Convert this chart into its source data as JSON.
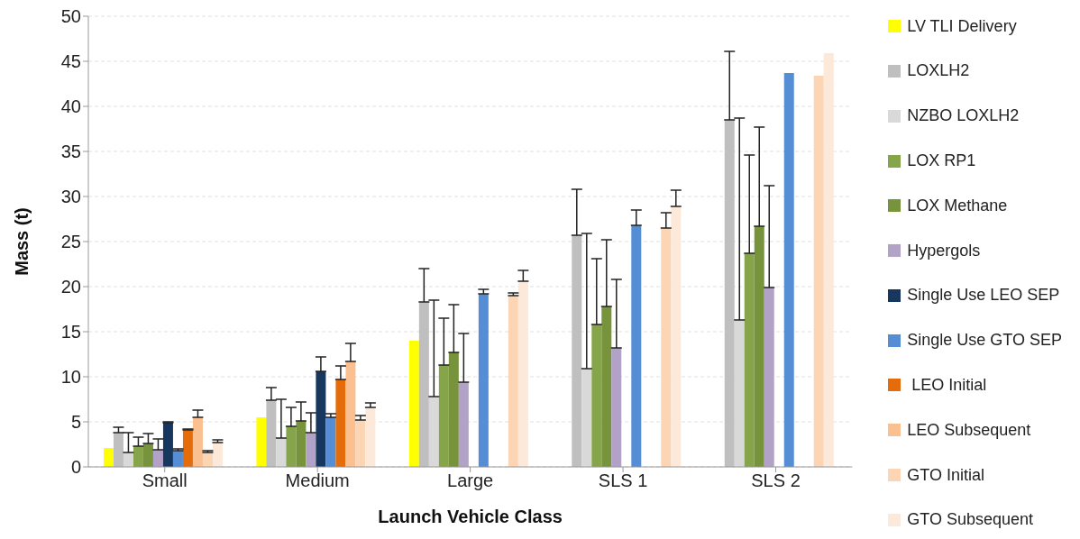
{
  "chart_data": {
    "type": "bar",
    "xlabel": "Launch Vehicle Class",
    "ylabel": "Mass (t)",
    "categories": [
      "Small",
      "Medium",
      "Large",
      "SLS 1",
      "SLS 2"
    ],
    "ylim": [
      0,
      50
    ],
    "yticks": [
      0,
      5,
      10,
      15,
      20,
      25,
      30,
      35,
      40,
      45,
      50
    ],
    "grid": "y",
    "legend": "right",
    "series": [
      {
        "name": "LV TLI Delivery",
        "color": "#ffff00",
        "values": [
          2.1,
          5.5,
          14.0,
          null,
          null
        ]
      },
      {
        "name": "LOXLH2",
        "color": "#bfbfbf",
        "values": [
          3.8,
          7.4,
          18.3,
          25.7,
          38.5
        ],
        "errors": [
          [
            3.8,
            4.4
          ],
          [
            7.4,
            8.8
          ],
          [
            18.3,
            22.0
          ],
          [
            25.7,
            30.8
          ],
          [
            38.5,
            46.1
          ]
        ]
      },
      {
        "name": "NZBO LOXLH2",
        "color": "#d9d9d9",
        "values": [
          1.6,
          3.2,
          7.8,
          10.9,
          16.3
        ],
        "errors": [
          [
            1.6,
            3.8
          ],
          [
            3.2,
            7.5
          ],
          [
            7.8,
            18.5
          ],
          [
            10.9,
            25.9
          ],
          [
            16.3,
            38.7
          ]
        ]
      },
      {
        "name": "LOX RP1",
        "color": "#86a44a",
        "values": [
          2.3,
          4.5,
          11.3,
          15.8,
          23.7
        ],
        "errors": [
          [
            2.3,
            3.3
          ],
          [
            4.5,
            6.6
          ],
          [
            11.3,
            16.5
          ],
          [
            15.8,
            23.1
          ],
          [
            23.7,
            34.6
          ]
        ]
      },
      {
        "name": "LOX Methane",
        "color": "#77933c",
        "values": [
          2.6,
          5.1,
          12.7,
          17.8,
          26.7
        ],
        "errors": [
          [
            2.6,
            3.7
          ],
          [
            5.1,
            7.2
          ],
          [
            12.7,
            18.0
          ],
          [
            17.8,
            25.2
          ],
          [
            26.7,
            37.7
          ]
        ]
      },
      {
        "name": "Hypergols",
        "color": "#b3a2c7",
        "values": [
          1.9,
          3.8,
          9.4,
          13.2,
          19.9
        ],
        "errors": [
          [
            1.9,
            3.1
          ],
          [
            3.8,
            6.0
          ],
          [
            9.4,
            14.8
          ],
          [
            13.2,
            20.8
          ],
          [
            19.9,
            31.2
          ]
        ]
      },
      {
        "name": "Single Use LEO SEP",
        "color": "#17375e",
        "values": [
          4.9,
          10.6,
          null,
          null,
          null
        ],
        "errors": [
          [
            4.9,
            5.0
          ],
          [
            10.6,
            12.2
          ],
          null,
          null,
          null
        ]
      },
      {
        "name": "Single Use GTO SEP",
        "color": "#558ed5",
        "values": [
          1.8,
          5.5,
          19.2,
          26.8,
          43.7
        ],
        "errors": [
          [
            1.8,
            2.0
          ],
          [
            5.5,
            5.9
          ],
          [
            19.2,
            19.7
          ],
          [
            26.8,
            28.5
          ],
          null
        ]
      },
      {
        "name": " LEO Initial",
        "color": "#e46c0a",
        "values": [
          4.1,
          9.7,
          null,
          null,
          null
        ],
        "errors": [
          [
            4.1,
            4.2
          ],
          [
            9.7,
            11.2
          ],
          null,
          null,
          null
        ]
      },
      {
        "name": "LEO Subsequent",
        "color": "#fac090",
        "values": [
          5.5,
          11.7,
          null,
          null,
          null
        ],
        "errors": [
          [
            5.5,
            6.3
          ],
          [
            11.7,
            13.7
          ],
          null,
          null,
          null
        ]
      },
      {
        "name": "GTO Initial",
        "color": "#fcd5b5",
        "values": [
          1.6,
          5.2,
          19.0,
          26.5,
          43.4
        ],
        "errors": [
          [
            1.6,
            1.8
          ],
          [
            5.2,
            5.7
          ],
          [
            19.0,
            19.3
          ],
          [
            26.5,
            28.2
          ],
          null
        ]
      },
      {
        "name": "GTO Subsequent",
        "color": "#fde9d9",
        "values": [
          2.7,
          6.6,
          20.6,
          28.9,
          45.9
        ],
        "errors": [
          [
            2.7,
            3.0
          ],
          [
            6.6,
            7.1
          ],
          [
            20.6,
            21.8
          ],
          [
            28.9,
            30.7
          ],
          null
        ]
      }
    ]
  }
}
